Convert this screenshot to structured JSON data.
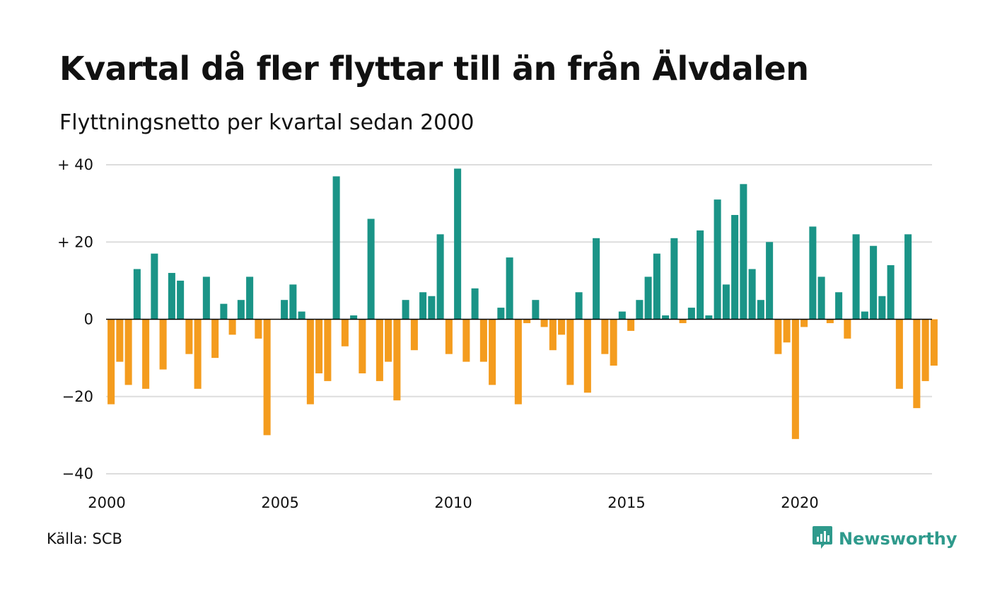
{
  "header": {
    "title": "Kvartal då fler flyttar till än från Älvdalen",
    "subtitle": "Flyttningsnetto per kvartal sedan 2000"
  },
  "footer": {
    "source": "Källa: SCB",
    "brand": "Newsworthy",
    "brand_icon": "bar-chart-icon"
  },
  "colors": {
    "positive": "#1a9487",
    "negative": "#f49c1e",
    "grid": "#dddddd",
    "brand": "#2f9a8c"
  },
  "chart_data": {
    "type": "bar",
    "title": "Kvartal då fler flyttar till än från Älvdalen",
    "subtitle": "Flyttningsnetto per kvartal sedan 2000",
    "xlabel": "",
    "ylabel": "",
    "ylim": [
      -40,
      40
    ],
    "xlim": [
      "2000-01-01",
      "2024-01-01"
    ],
    "y_ticks": [
      {
        "value": 40,
        "label": "+ 40"
      },
      {
        "value": 20,
        "label": "+ 20"
      },
      {
        "value": 0,
        "label": "0"
      },
      {
        "value": -20,
        "label": "−20"
      },
      {
        "value": -40,
        "label": "−40"
      }
    ],
    "x_ticks": [
      {
        "date": "2000-01-01",
        "label": "2000"
      },
      {
        "date": "2005-01-01",
        "label": "2005"
      },
      {
        "date": "2010-01-01",
        "label": "2010"
      },
      {
        "date": "2015-01-01",
        "label": "2015"
      },
      {
        "date": "2020-01-01",
        "label": "2020"
      }
    ],
    "grid": true,
    "categories": [
      "2000K1",
      "2000K2",
      "2000K3",
      "2000K4",
      "2001K1",
      "2001K2",
      "2001K3",
      "2001K4",
      "2002K1",
      "2002K2",
      "2002K3",
      "2002K4",
      "2003K1",
      "2003K2",
      "2003K3",
      "2003K4",
      "2004K1",
      "2004K2",
      "2004K3",
      "2004K4",
      "2005K1",
      "2005K2",
      "2005K3",
      "2005K4",
      "2006K1",
      "2006K2",
      "2006K3",
      "2006K4",
      "2007K1",
      "2007K2",
      "2007K3",
      "2007K4",
      "2008K1",
      "2008K2",
      "2008K3",
      "2008K4",
      "2009K1",
      "2009K2",
      "2009K3",
      "2009K4",
      "2010K1",
      "2010K2",
      "2010K3",
      "2010K4",
      "2011K1",
      "2011K2",
      "2011K3",
      "2011K4",
      "2012K1",
      "2012K2",
      "2012K3",
      "2012K4",
      "2013K1",
      "2013K2",
      "2013K3",
      "2013K4",
      "2014K1",
      "2014K2",
      "2014K3",
      "2014K4",
      "2015K1",
      "2015K2",
      "2015K3",
      "2015K4",
      "2016K1",
      "2016K2",
      "2016K3",
      "2016K4",
      "2017K1",
      "2017K2",
      "2017K3",
      "2017K4",
      "2018K1",
      "2018K2",
      "2018K3",
      "2018K4",
      "2019K1",
      "2019K2",
      "2019K3",
      "2019K4",
      "2020K1",
      "2020K2",
      "2020K3",
      "2020K4",
      "2021K1",
      "2021K2",
      "2021K3",
      "2021K4",
      "2022K1",
      "2022K2",
      "2022K3",
      "2022K4",
      "2023K1",
      "2023K2",
      "2023K3",
      "2023K4"
    ],
    "values": [
      -22,
      -11,
      -17,
      13,
      -18,
      17,
      -13,
      12,
      10,
      -9,
      -18,
      11,
      -10,
      4,
      -4,
      5,
      11,
      -5,
      -30,
      0,
      5,
      9,
      2,
      -22,
      -14,
      -16,
      37,
      -7,
      1,
      -14,
      26,
      -16,
      -11,
      -21,
      5,
      -8,
      7,
      6,
      22,
      -9,
      39,
      -11,
      8,
      -11,
      -17,
      3,
      16,
      -22,
      -1,
      5,
      -2,
      -8,
      -4,
      -17,
      7,
      -19,
      21,
      -9,
      -12,
      2,
      -3,
      5,
      11,
      17,
      1,
      21,
      -1,
      3,
      23,
      1,
      31,
      9,
      27,
      35,
      13,
      5,
      20,
      -9,
      -6,
      -31,
      -2,
      24,
      11,
      -1,
      7,
      -5,
      22,
      2,
      19,
      6,
      14,
      -18,
      22,
      -23,
      -16,
      -12
    ]
  }
}
